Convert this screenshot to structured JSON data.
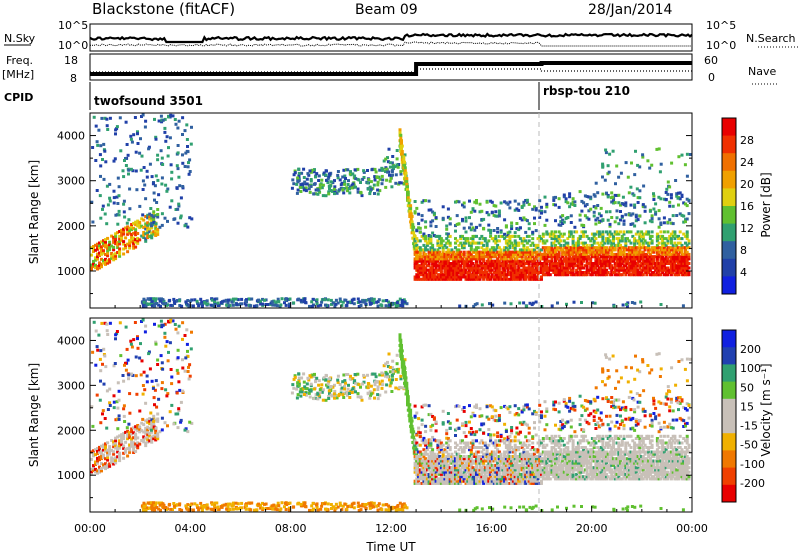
{
  "header": {
    "station": "Blackstone (fitACF)",
    "beam": "Beam 09",
    "date": "28/Jan/2014"
  },
  "labels": {
    "nsky": "N.Sky",
    "nsearch": "N.Search",
    "freq": "Freq.",
    "mhz": "[MHz]",
    "nave": "Nave",
    "cpid": "CPID",
    "noise_hi": "10^5",
    "noise_lo": "10^0",
    "noise_hi_r": "10^5",
    "noise_lo_r": "10^0",
    "freq_hi": "18",
    "freq_lo": "8",
    "nave_hi": "60",
    "nave_lo": "0",
    "cpid_1": "twofsound 3501",
    "cpid_2": "rbsp-tou 210"
  },
  "colors": {
    "power": [
      "#1020e0",
      "#2040a8",
      "#3060a0",
      "#30a070",
      "#60c030",
      "#e0d010",
      "#f0a000",
      "#f07000",
      "#f03000",
      "#e80000"
    ],
    "velocity": [
      "#e80000",
      "#f04000",
      "#f07800",
      "#f0b000",
      "#c8c0b8",
      "#c8c0b8",
      "#60c030",
      "#30a070",
      "#2040b0",
      "#1020e0"
    ]
  },
  "chart_data": [
    {
      "type": "heatmap",
      "ylabel": "Slant Range [km]",
      "xlabel": "",
      "yticks": [
        "4000",
        "3000",
        "2000",
        "1000"
      ],
      "ylim": [
        180,
        4500
      ],
      "xlim": [
        0,
        24
      ],
      "colorbar": {
        "label": "Power [dB]",
        "ticks": [
          "28",
          "24",
          "20",
          "16",
          "12",
          "8",
          "4"
        ],
        "range": [
          0,
          32
        ]
      }
    },
    {
      "type": "heatmap",
      "ylabel": "Slant Range [km]",
      "xlabel": "Time UT",
      "yticks": [
        "4000",
        "3000",
        "2000",
        "1000"
      ],
      "xticks": [
        "00:00",
        "04:00",
        "08:00",
        "12:00",
        "16:00",
        "20:00",
        "00:00"
      ],
      "ylim": [
        180,
        4500
      ],
      "xlim": [
        0,
        24
      ],
      "colorbar": {
        "label": "Velocity [m s⁻¹]",
        "ticks": [
          "200",
          "100",
          "50",
          "15",
          "-15",
          "-50",
          "-100",
          "-200"
        ],
        "range": [
          -250,
          250
        ]
      }
    }
  ]
}
